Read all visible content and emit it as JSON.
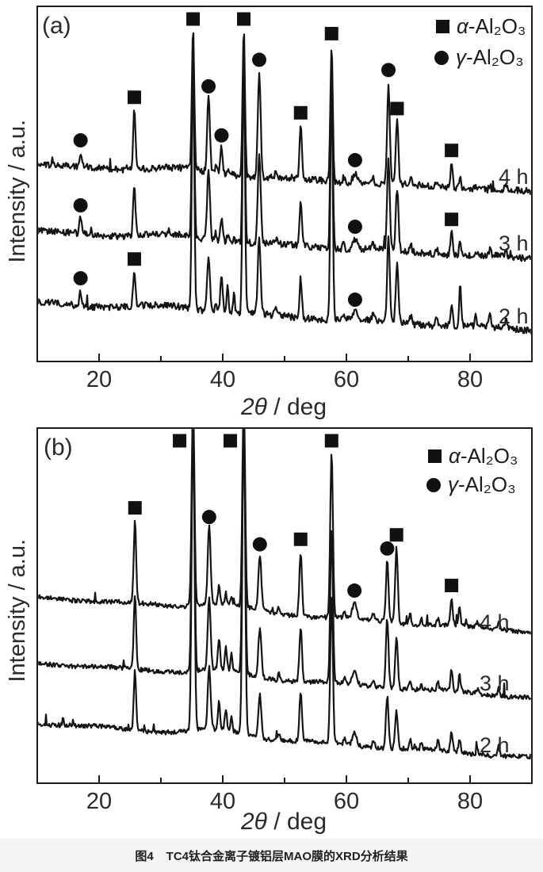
{
  "page": {
    "background": "#ffffff",
    "caption_prefix": "图4",
    "caption_text": "TC4钛合金离子镀铝层MAO膜的XRD分析结果",
    "caption_band_color": "#f5f5f6"
  },
  "chart_data": {
    "type": "line",
    "chart_kind": "XRD patterns, two panels, three stacked offset traces each (oxidation time 4 h / 3 h / 2 h)",
    "xlabel": "2θ / deg",
    "xlabel_math": "2θ",
    "xlabel_rest": " / deg",
    "ylabel": "Intensity / a.u.",
    "x_range": [
      10,
      90
    ],
    "x_ticks_labeled": [
      20,
      40,
      60,
      80
    ],
    "x_ticks_minor": [
      30,
      50,
      70
    ],
    "line_color": "#141414",
    "marker_color": "#111111",
    "legend": [
      {
        "marker": "square",
        "symbol": "α",
        "formula": "-Al₂O₃",
        "phase": "alpha-Al2O3"
      },
      {
        "marker": "circle",
        "symbol": "γ",
        "formula": "-Al₂O₃",
        "phase": "gamma-Al2O3"
      }
    ],
    "panels": [
      {
        "label": "(a)",
        "traces": [
          {
            "name": "4 h"
          },
          {
            "name": "3 h"
          },
          {
            "name": "2 h"
          }
        ],
        "peaks": [
          [
            17.0,
            [
              18,
              20,
              18
            ],
            0.17
          ],
          [
            25.7,
            [
              76,
              66,
              46
            ],
            0.18
          ],
          [
            35.2,
            [
              180,
              250,
              330
            ],
            0.19
          ],
          [
            37.7,
            [
              95,
              88,
              72
            ],
            0.22
          ],
          [
            38.9,
            [
              12,
              10,
              14
            ],
            0.15
          ],
          [
            39.8,
            [
              34,
              30,
              50
            ],
            0.18
          ],
          [
            40.8,
            [
              8,
              10,
              36
            ],
            0.15
          ],
          [
            41.8,
            [
              6,
              8,
              24
            ],
            0.15
          ],
          [
            43.4,
            [
              186,
              255,
              335
            ],
            0.19
          ],
          [
            45.9,
            [
              132,
              112,
              95
            ],
            0.23
          ],
          [
            48.6,
            [
              6,
              6,
              10
            ],
            0.18
          ],
          [
            52.6,
            [
              68,
              58,
              50
            ],
            0.19
          ],
          [
            57.6,
            [
              170,
              230,
              310
            ],
            0.19
          ],
          [
            59.6,
            [
              7,
              8,
              9
            ],
            0.17
          ],
          [
            61.4,
            [
              12,
              12,
              10
            ],
            0.38
          ],
          [
            64.3,
            [
              7,
              8,
              9
            ],
            0.17
          ],
          [
            66.8,
            [
              128,
              115,
              105
            ],
            0.21
          ],
          [
            68.2,
            [
              80,
              78,
              75
            ],
            0.21
          ],
          [
            70.4,
            [
              8,
              9,
              10
            ],
            0.17
          ],
          [
            74.6,
            [
              6,
              8,
              12
            ],
            0.17
          ],
          [
            77.0,
            [
              31,
              28,
              25
            ],
            0.19
          ],
          [
            78.4,
            [
              16,
              15,
              50
            ],
            0.17
          ],
          [
            80.9,
            [
              6,
              6,
              12
            ],
            0.15
          ],
          [
            83.2,
            [
              6,
              7,
              14
            ],
            0.17
          ],
          [
            85.8,
            [
              6,
              8,
              10
            ],
            0.17
          ]
        ],
        "markers": [
          {
            "phase": "gamma",
            "two_theta": 17.0,
            "traces": [
              0,
              1,
              2
            ]
          },
          {
            "phase": "alpha",
            "two_theta": 25.7,
            "traces": [
              0,
              2
            ]
          },
          {
            "phase": "alpha",
            "two_theta": 35.2,
            "traces": [
              0
            ]
          },
          {
            "phase": "gamma",
            "two_theta": 37.7,
            "traces": [
              0
            ]
          },
          {
            "phase": "gamma",
            "two_theta": 39.8,
            "traces": [
              0
            ]
          },
          {
            "phase": "alpha",
            "two_theta": 43.4,
            "traces": [
              0
            ]
          },
          {
            "phase": "gamma",
            "two_theta": 45.9,
            "traces": [
              0
            ]
          },
          {
            "phase": "alpha",
            "two_theta": 52.6,
            "traces": [
              0
            ]
          },
          {
            "phase": "alpha",
            "two_theta": 57.6,
            "traces": [
              0
            ]
          },
          {
            "phase": "gamma",
            "two_theta": 61.4,
            "traces": [
              0,
              1,
              2
            ]
          },
          {
            "phase": "gamma",
            "two_theta": 66.8,
            "traces": [
              0
            ]
          },
          {
            "phase": "alpha",
            "two_theta": 68.2,
            "traces": [
              0
            ]
          },
          {
            "phase": "alpha",
            "two_theta": 77.0,
            "traces": [
              0,
              1
            ]
          }
        ]
      },
      {
        "label": "(b)",
        "traces": [
          {
            "name": "4 h"
          },
          {
            "name": "3 h"
          },
          {
            "name": "2 h"
          }
        ],
        "peaks": [
          [
            25.8,
            [
              105,
              95,
              75
            ],
            0.19
          ],
          [
            35.2,
            [
              260,
              330,
              410
            ],
            0.22
          ],
          [
            37.8,
            [
              100,
              92,
              80
            ],
            0.23
          ],
          [
            39.4,
            [
              24,
              38,
              34
            ],
            0.18
          ],
          [
            40.5,
            [
              14,
              28,
              26
            ],
            0.17
          ],
          [
            41.4,
            [
              10,
              20,
              18
            ],
            0.15
          ],
          [
            43.4,
            [
              265,
              335,
              415
            ],
            0.22
          ],
          [
            46.0,
            [
              70,
              62,
              55
            ],
            0.24
          ],
          [
            49.1,
            [
              8,
              8,
              8
            ],
            0.18
          ],
          [
            52.6,
            [
              80,
              68,
              60
            ],
            0.21
          ],
          [
            57.6,
            [
              210,
              195,
              185
            ],
            0.21
          ],
          [
            59.7,
            [
              9,
              9,
              9
            ],
            0.17
          ],
          [
            61.3,
            [
              20,
              18,
              16
            ],
            0.33
          ],
          [
            64.4,
            [
              9,
              10,
              10
            ],
            0.17
          ],
          [
            66.6,
            [
              76,
              88,
              66
            ],
            0.21
          ],
          [
            68.1,
            [
              94,
              64,
              48
            ],
            0.21
          ],
          [
            70.3,
            [
              12,
              12,
              12
            ],
            0.17
          ],
          [
            72.1,
            [
              8,
              8,
              8
            ],
            0.15
          ],
          [
            74.8,
            [
              8,
              10,
              12
            ],
            0.17
          ],
          [
            77.0,
            [
              35,
              28,
              26
            ],
            0.19
          ],
          [
            78.3,
            [
              22,
              20,
              18
            ],
            0.17
          ],
          [
            81.2,
            [
              7,
              7,
              8
            ],
            0.15
          ],
          [
            84.6,
            [
              10,
              10,
              12
            ],
            0.17
          ]
        ],
        "markers": [
          {
            "phase": "alpha",
            "two_theta": 25.8,
            "traces": [
              0
            ]
          },
          {
            "phase": "alpha",
            "two_theta": 35.2,
            "traces": [
              0
            ],
            "dx": -17
          },
          {
            "phase": "gamma",
            "two_theta": 37.8,
            "traces": [
              0
            ]
          },
          {
            "phase": "alpha",
            "two_theta": 43.4,
            "traces": [
              0
            ],
            "dx": -17
          },
          {
            "phase": "gamma",
            "two_theta": 46.0,
            "traces": [
              0
            ]
          },
          {
            "phase": "alpha",
            "two_theta": 52.6,
            "traces": [
              0
            ]
          },
          {
            "phase": "alpha",
            "two_theta": 57.6,
            "traces": [
              0
            ]
          },
          {
            "phase": "gamma",
            "two_theta": 61.3,
            "traces": [
              0
            ]
          },
          {
            "phase": "gamma",
            "two_theta": 66.6,
            "traces": [
              0
            ]
          },
          {
            "phase": "alpha",
            "two_theta": 68.1,
            "traces": [
              0
            ]
          },
          {
            "phase": "alpha",
            "two_theta": 77.0,
            "traces": [
              0
            ]
          }
        ]
      }
    ]
  }
}
